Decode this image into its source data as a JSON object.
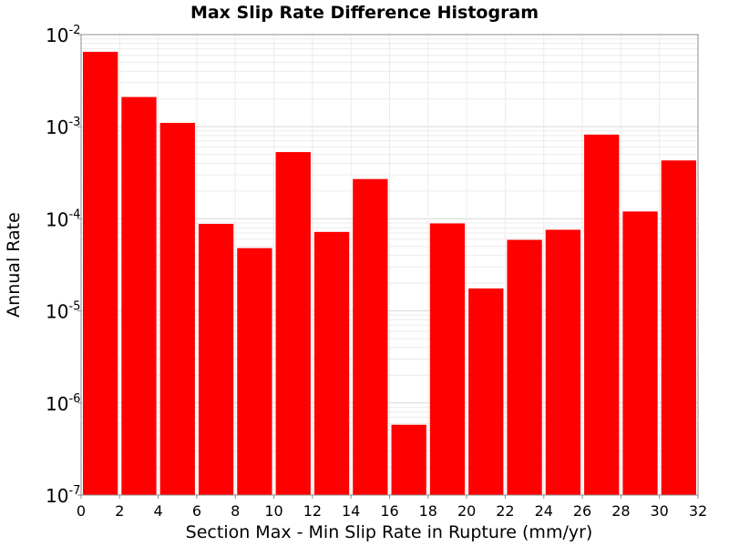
{
  "chart_data": {
    "type": "bar",
    "title": "Max Slip Rate Difference Histogram",
    "xlabel": "Section Max - Min Slip Rate in Rupture (mm/yr)",
    "ylabel": "Annual Rate",
    "y_scale": "log",
    "xlim": [
      0,
      32
    ],
    "ylim": [
      1e-07,
      0.01
    ],
    "bin_width": 2,
    "x_ticks": [
      "0",
      "2",
      "4",
      "6",
      "8",
      "10",
      "12",
      "14",
      "16",
      "18",
      "20",
      "22",
      "24",
      "26",
      "28",
      "30",
      "32"
    ],
    "y_ticks": [
      {
        "base": "10",
        "exp": "-7"
      },
      {
        "base": "10",
        "exp": "-6"
      },
      {
        "base": "10",
        "exp": "-5"
      },
      {
        "base": "10",
        "exp": "-4"
      },
      {
        "base": "10",
        "exp": "-3"
      },
      {
        "base": "10",
        "exp": "-2"
      }
    ],
    "bins": [
      {
        "x": 1,
        "value": 0.0065
      },
      {
        "x": 3,
        "value": 0.0021
      },
      {
        "x": 5,
        "value": 0.0011
      },
      {
        "x": 7,
        "value": 8.8e-05
      },
      {
        "x": 9,
        "value": 4.8e-05
      },
      {
        "x": 11,
        "value": 0.00053
      },
      {
        "x": 13,
        "value": 7.2e-05
      },
      {
        "x": 15,
        "value": 0.00027
      },
      {
        "x": 17,
        "value": 5.8e-07
      },
      {
        "x": 19,
        "value": 8.9e-05
      },
      {
        "x": 21,
        "value": 1.75e-05
      },
      {
        "x": 23,
        "value": 5.9e-05
      },
      {
        "x": 25,
        "value": 7.6e-05
      },
      {
        "x": 27,
        "value": 0.00082
      },
      {
        "x": 29,
        "value": 0.00012
      },
      {
        "x": 31,
        "value": 0.00043
      }
    ],
    "bar_color": "#ff0000",
    "grid": true,
    "legend": "none"
  }
}
